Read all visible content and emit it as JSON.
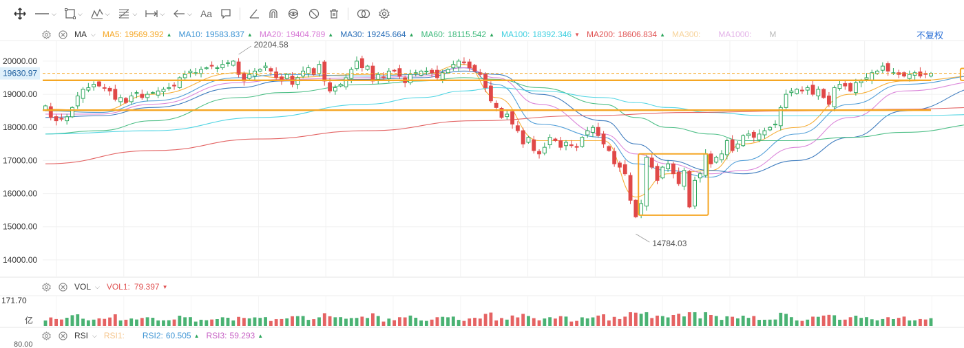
{
  "toolbar": {
    "items": [
      "move-icon",
      "line-icon",
      "rect-icon",
      "pattern-icon",
      "fib-icon",
      "range-icon",
      "arrow-icon",
      "text-icon",
      "note-icon",
      "pen-icon",
      "magnet-icon",
      "eye-icon",
      "hide-icon",
      "trash-icon",
      "compare-icon",
      "settings-icon"
    ]
  },
  "ma_legend": {
    "indicator": "MA",
    "items": [
      {
        "label": "MA5:",
        "value": "19569.392",
        "color": "#f5a623",
        "dir": "up"
      },
      {
        "label": "MA10:",
        "value": "19583.837",
        "color": "#3f95d4",
        "dir": "up"
      },
      {
        "label": "MA20:",
        "value": "19404.789",
        "color": "#d77ad6",
        "dir": "up"
      },
      {
        "label": "MA30:",
        "value": "19245.664",
        "color": "#2b6fb8",
        "dir": "up"
      },
      {
        "label": "MA60:",
        "value": "18115.542",
        "color": "#3bb87a",
        "dir": "up"
      },
      {
        "label": "MA100:",
        "value": "18392.346",
        "color": "#3fd0e0",
        "dir": "down"
      },
      {
        "label": "MA200:",
        "value": "18606.834",
        "color": "#e05353",
        "dir": "up"
      },
      {
        "label": "MA300:",
        "value": "",
        "color": "#f7d39a",
        "dir": ""
      },
      {
        "label": "MA1000:",
        "value": "",
        "color": "#e3b3e8",
        "dir": ""
      },
      {
        "label": "M",
        "value": "",
        "color": "#bbbbbb",
        "dir": ""
      }
    ],
    "fuquan": "不复权"
  },
  "vol_legend": {
    "indicator": "VOL",
    "label": "VOL1:",
    "value": "79.397",
    "dir": "down"
  },
  "rsi_legend": {
    "indicator": "RSI",
    "items": [
      {
        "label": "RSI1:",
        "value": "",
        "color": "#f5c48a"
      },
      {
        "label": "RSI2:",
        "value": "60.505",
        "color": "#3f95d4"
      },
      {
        "label": "RSI3:",
        "value": "59.293",
        "color": "#c65fc4"
      }
    ]
  },
  "chart_data": {
    "type": "candlestick",
    "ylim": [
      13500,
      20600
    ],
    "yticks": [
      "20000.00",
      "19000.00",
      "18000.00",
      "17000.00",
      "16000.00",
      "15000.00",
      "14000.00"
    ],
    "price_label": "19630.97",
    "price_value": 19630.97,
    "high_annotation": {
      "label": "20204.58",
      "value": 20204.58
    },
    "low_annotation": {
      "label": "14784.03",
      "value": 14784.03
    },
    "h_lines": [
      19420,
      18520
    ],
    "vol_labels": {
      "max": "171.70",
      "unit": "亿"
    },
    "rsi_label": "80.00",
    "closes": [
      18650,
      18300,
      18200,
      18250,
      18320,
      18600,
      18950,
      19150,
      19200,
      19300,
      19250,
      19180,
      19100,
      18850,
      18900,
      18750,
      18950,
      19050,
      18900,
      19000,
      19050,
      19100,
      19150,
      19200,
      19250,
      19500,
      19600,
      19700,
      19650,
      19750,
      19800,
      19850,
      19800,
      19900,
      19950,
      20000,
      19600,
      19400,
      19600,
      19700,
      19750,
      19850,
      19700,
      19500,
      19400,
      19600,
      19300,
      19500,
      19700,
      19800,
      19600,
      19900,
      19400,
      19100,
      19200,
      19300,
      19500,
      19750,
      20000,
      19800,
      19850,
      19400,
      19600,
      19500,
      19700,
      19700,
      19550,
      19350,
      19600,
      19650,
      19700,
      19700,
      19650,
      19500,
      19650,
      19750,
      19900,
      20000,
      19950,
      19800,
      19700,
      19600,
      19200,
      18800,
      18600,
      18300,
      18400,
      18100,
      17900,
      17500,
      17700,
      17300,
      17200,
      17400,
      17700,
      17600,
      17400,
      17550,
      17450,
      17400,
      17700,
      17900,
      18000,
      17750,
      17500,
      17300,
      16900,
      16800,
      16600,
      15800,
      15300,
      15700,
      17100,
      16800,
      16400,
      16800,
      16900,
      16600,
      16300,
      16700,
      15600,
      16400,
      16600,
      17200,
      16900,
      17100,
      17200,
      17600,
      17300,
      17500,
      17750,
      17800,
      17700,
      17800,
      17900,
      18000,
      18100,
      18600,
      19000,
      19100,
      19150,
      19100,
      19200,
      19000,
      19150,
      18900,
      18700,
      19200,
      19300,
      19250,
      19100,
      19350,
      19400,
      19500,
      19650,
      19700,
      19850,
      19700,
      19650,
      19600,
      19550,
      19600,
      19650,
      19550,
      19600,
      19630.97
    ],
    "ma": [
      {
        "name": "MA5",
        "color": "#f5a623",
        "pts": [
          [
            0,
            18550
          ],
          [
            10,
            18500
          ],
          [
            20,
            19000
          ],
          [
            36,
            19650
          ],
          [
            44,
            19500
          ],
          [
            60,
            19600
          ],
          [
            70,
            19600
          ],
          [
            78,
            19900
          ],
          [
            84,
            18900
          ],
          [
            92,
            17600
          ],
          [
            104,
            17600
          ],
          [
            110,
            15900
          ],
          [
            116,
            16600
          ],
          [
            124,
            16700
          ],
          [
            130,
            17500
          ],
          [
            140,
            18000
          ],
          [
            150,
            19000
          ],
          [
            160,
            19400
          ],
          [
            176,
            19570
          ]
        ]
      },
      {
        "name": "MA10",
        "color": "#3f95d4",
        "pts": [
          [
            0,
            18500
          ],
          [
            10,
            18450
          ],
          [
            20,
            18800
          ],
          [
            36,
            19500
          ],
          [
            44,
            19600
          ],
          [
            60,
            19550
          ],
          [
            70,
            19600
          ],
          [
            78,
            19800
          ],
          [
            84,
            19300
          ],
          [
            92,
            18100
          ],
          [
            104,
            17700
          ],
          [
            110,
            16900
          ],
          [
            116,
            16700
          ],
          [
            124,
            16500
          ],
          [
            130,
            17000
          ],
          [
            140,
            17800
          ],
          [
            150,
            18700
          ],
          [
            160,
            19300
          ],
          [
            176,
            19584
          ]
        ]
      },
      {
        "name": "MA20",
        "color": "#d77ad6",
        "pts": [
          [
            0,
            18400
          ],
          [
            10,
            18400
          ],
          [
            20,
            18700
          ],
          [
            36,
            19350
          ],
          [
            44,
            19450
          ],
          [
            60,
            19500
          ],
          [
            70,
            19550
          ],
          [
            78,
            19800
          ],
          [
            84,
            19500
          ],
          [
            92,
            18700
          ],
          [
            104,
            17800
          ],
          [
            110,
            17200
          ],
          [
            116,
            16900
          ],
          [
            124,
            16600
          ],
          [
            130,
            16700
          ],
          [
            140,
            17400
          ],
          [
            150,
            18300
          ],
          [
            160,
            19100
          ],
          [
            176,
            19405
          ]
        ]
      },
      {
        "name": "MA30",
        "color": "#2b6fb8",
        "pts": [
          [
            0,
            18300
          ],
          [
            10,
            18350
          ],
          [
            20,
            18600
          ],
          [
            36,
            19200
          ],
          [
            44,
            19400
          ],
          [
            60,
            19450
          ],
          [
            70,
            19500
          ],
          [
            78,
            19700
          ],
          [
            84,
            19600
          ],
          [
            92,
            19000
          ],
          [
            104,
            18200
          ],
          [
            110,
            17500
          ],
          [
            116,
            17000
          ],
          [
            124,
            16700
          ],
          [
            130,
            16600
          ],
          [
            140,
            17000
          ],
          [
            150,
            17700
          ],
          [
            160,
            18500
          ],
          [
            176,
            19246
          ]
        ]
      },
      {
        "name": "MA60",
        "color": "#3bb87a",
        "pts": [
          [
            0,
            17800
          ],
          [
            10,
            17900
          ],
          [
            20,
            18200
          ],
          [
            36,
            18900
          ],
          [
            44,
            19050
          ],
          [
            60,
            19300
          ],
          [
            70,
            19400
          ],
          [
            78,
            19500
          ],
          [
            84,
            19450
          ],
          [
            92,
            19200
          ],
          [
            104,
            18700
          ],
          [
            110,
            18300
          ],
          [
            116,
            18000
          ],
          [
            124,
            17800
          ],
          [
            130,
            17600
          ],
          [
            140,
            17600
          ],
          [
            150,
            17700
          ],
          [
            160,
            17850
          ],
          [
            176,
            18116
          ]
        ]
      },
      {
        "name": "MA100",
        "color": "#3fd0e0",
        "pts": [
          [
            0,
            17800
          ],
          [
            20,
            17900
          ],
          [
            40,
            18300
          ],
          [
            60,
            18700
          ],
          [
            70,
            18900
          ],
          [
            78,
            19100
          ],
          [
            84,
            19200
          ],
          [
            92,
            19100
          ],
          [
            104,
            18900
          ],
          [
            110,
            18750
          ],
          [
            116,
            18600
          ],
          [
            124,
            18450
          ],
          [
            134,
            18350
          ],
          [
            150,
            18350
          ],
          [
            160,
            18350
          ],
          [
            176,
            18392
          ]
        ]
      },
      {
        "name": "MA200",
        "color": "#e05353",
        "pts": [
          [
            0,
            16900
          ],
          [
            20,
            17300
          ],
          [
            40,
            17650
          ],
          [
            60,
            17900
          ],
          [
            80,
            18200
          ],
          [
            100,
            18350
          ],
          [
            120,
            18450
          ],
          [
            140,
            18500
          ],
          [
            160,
            18550
          ],
          [
            176,
            18607
          ]
        ]
      }
    ]
  }
}
